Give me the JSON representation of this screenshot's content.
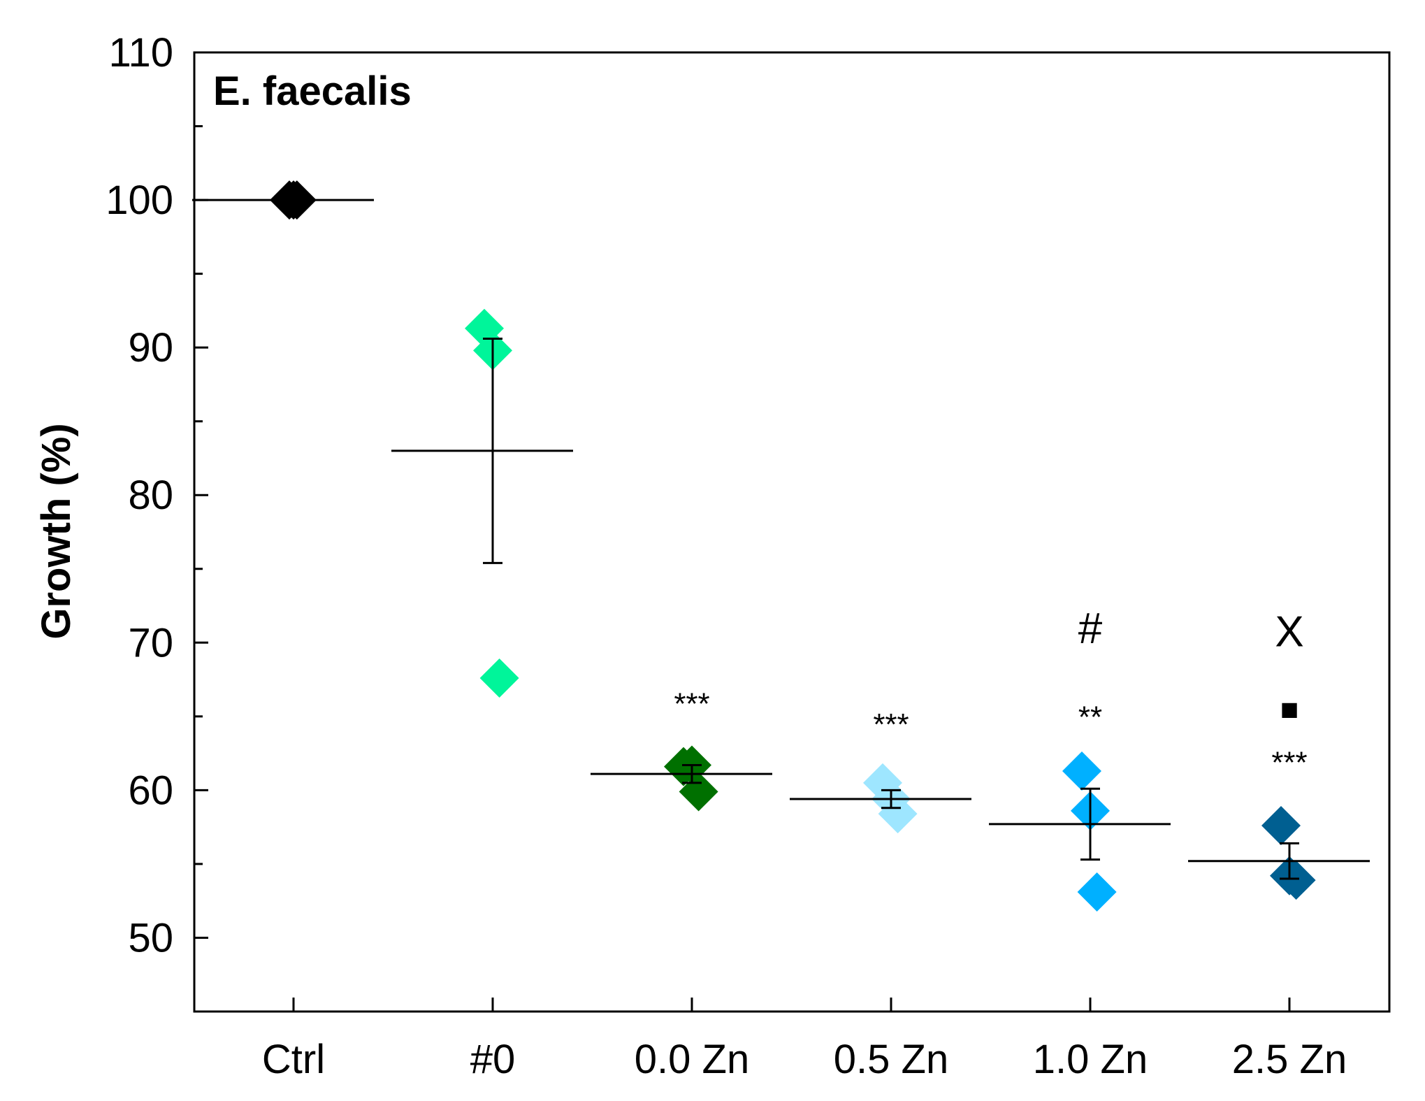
{
  "chart_data": {
    "type": "scatter",
    "title": "",
    "panel_label": "E. faecalis",
    "xlabel": "",
    "ylabel": "Growth (%)",
    "ylim": [
      45,
      110
    ],
    "yticks": [
      50,
      60,
      70,
      80,
      90,
      100,
      110
    ],
    "categories": [
      "Ctrl",
      "#0",
      "0.0 Zn",
      "0.5 Zn",
      "1.0 Zn",
      "2.5 Zn"
    ],
    "groups": [
      {
        "name": "Ctrl",
        "color": "#000000",
        "points": [
          100,
          100,
          100
        ],
        "mean": 100.0,
        "sem": 0.0,
        "annotations": []
      },
      {
        "name": "#0",
        "color": "#00f59a",
        "points": [
          91.3,
          89.8,
          67.6
        ],
        "mean": 83.0,
        "sem": 7.6,
        "annotations": []
      },
      {
        "name": "0.0 Zn",
        "color": "#007000",
        "points": [
          61.6,
          61.7,
          59.9
        ],
        "mean": 61.1,
        "sem": 0.6,
        "annotations": [
          {
            "text": "***",
            "y": 66.4
          }
        ]
      },
      {
        "name": "0.5 Zn",
        "color": "#9ee6ff",
        "points": [
          60.5,
          59.4,
          58.4
        ],
        "mean": 59.4,
        "sem": 0.6,
        "annotations": [
          {
            "text": "***",
            "y": 65.0
          }
        ]
      },
      {
        "name": "1.0 Zn",
        "color": "#00b0ff",
        "points": [
          61.3,
          58.6,
          53.1
        ],
        "mean": 57.7,
        "sem": 2.4,
        "annotations": [
          {
            "text": "**",
            "y": 65.5
          },
          {
            "text": "#",
            "y": 71.0
          }
        ]
      },
      {
        "name": "2.5 Zn",
        "color": "#005f91",
        "points": [
          57.6,
          54.2,
          53.9
        ],
        "mean": 55.2,
        "sem": 1.2,
        "annotations": [
          {
            "text": "***",
            "y": 62.4
          },
          {
            "text": "■",
            "y": 66.0
          },
          {
            "text": "X",
            "y": 70.8
          }
        ]
      }
    ]
  }
}
